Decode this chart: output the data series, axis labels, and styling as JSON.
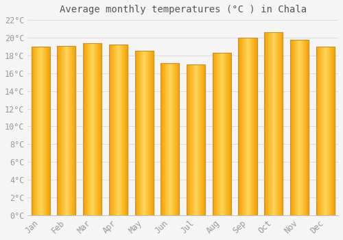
{
  "title": "Average monthly temperatures (°C ) in Chala",
  "months": [
    "Jan",
    "Feb",
    "Mar",
    "Apr",
    "May",
    "Jun",
    "Jul",
    "Aug",
    "Sep",
    "Oct",
    "Nov",
    "Dec"
  ],
  "temperatures": [
    19.0,
    19.1,
    19.4,
    19.2,
    18.5,
    17.1,
    17.0,
    18.3,
    20.0,
    20.6,
    19.8,
    19.0
  ],
  "bar_color_center": "#FFD966",
  "bar_color_edge": "#F5A800",
  "bar_outline_color": "#C8902A",
  "background_color": "#F5F5F5",
  "plot_bg_color": "#F5F5F5",
  "grid_color": "#DDDDDD",
  "text_color": "#999999",
  "title_color": "#555555",
  "ylim": [
    0,
    22
  ],
  "ytick_step": 2,
  "title_fontsize": 10,
  "tick_fontsize": 8.5
}
